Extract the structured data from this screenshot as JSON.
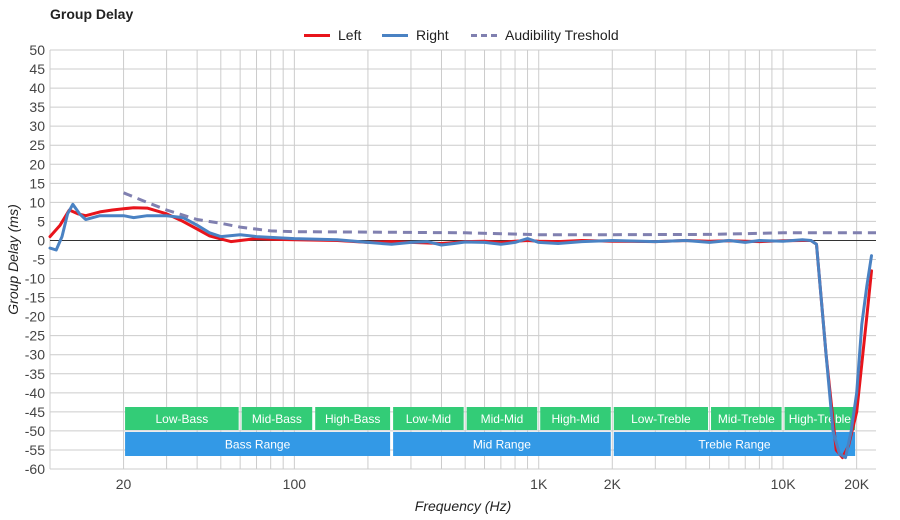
{
  "chart_data": {
    "type": "line",
    "title": "Group Delay",
    "xlabel": "Frequency (Hz)",
    "ylabel": "Group Delay (ms)",
    "xscale": "log",
    "xlim": [
      10,
      24000
    ],
    "ylim": [
      -60,
      50
    ],
    "grid": true,
    "legend_position": "top-center",
    "x_tick_labels": [
      {
        "value": 20,
        "label": "20"
      },
      {
        "value": 100,
        "label": "100"
      },
      {
        "value": 1000,
        "label": "1K"
      },
      {
        "value": 2000,
        "label": "2K"
      },
      {
        "value": 10000,
        "label": "10K"
      },
      {
        "value": 20000,
        "label": "20K"
      }
    ],
    "y_ticks": [
      50,
      45,
      40,
      35,
      30,
      25,
      20,
      15,
      10,
      5,
      0,
      -5,
      -10,
      -15,
      -20,
      -25,
      -30,
      -35,
      -40,
      -45,
      -50,
      -55,
      -60
    ],
    "series": [
      {
        "name": "Left",
        "color": "#e8141b",
        "dash": "solid",
        "points": [
          [
            10,
            1
          ],
          [
            11,
            4
          ],
          [
            12,
            8
          ],
          [
            13,
            7
          ],
          [
            14,
            6.5
          ],
          [
            16,
            7.5
          ],
          [
            18,
            8
          ],
          [
            20,
            8.3
          ],
          [
            22,
            8.6
          ],
          [
            25,
            8.5
          ],
          [
            30,
            7
          ],
          [
            35,
            5
          ],
          [
            40,
            3
          ],
          [
            45,
            1.2
          ],
          [
            50,
            0.4
          ],
          [
            55,
            -0.3
          ],
          [
            60,
            0
          ],
          [
            70,
            0.5
          ],
          [
            80,
            0.3
          ],
          [
            100,
            0.2
          ],
          [
            150,
            0
          ],
          [
            200,
            -0.5
          ],
          [
            250,
            -0.3
          ],
          [
            300,
            -0.5
          ],
          [
            400,
            -0.8
          ],
          [
            500,
            -0.3
          ],
          [
            600,
            -0.2
          ],
          [
            700,
            -0.5
          ],
          [
            800,
            -0.2
          ],
          [
            900,
            0
          ],
          [
            1000,
            -0.2
          ],
          [
            1200,
            -0.3
          ],
          [
            1500,
            0
          ],
          [
            2000,
            -0.2
          ],
          [
            3000,
            -0.3
          ],
          [
            4000,
            0
          ],
          [
            5000,
            -0.2
          ],
          [
            6000,
            -0.1
          ],
          [
            8000,
            -0.3
          ],
          [
            10000,
            -0.1
          ],
          [
            12000,
            0
          ],
          [
            13000,
            0
          ],
          [
            13700,
            -1
          ],
          [
            15000,
            -30
          ],
          [
            16500,
            -55
          ],
          [
            17500,
            -57
          ],
          [
            18500,
            -54
          ],
          [
            20000,
            -45
          ],
          [
            22000,
            -20
          ],
          [
            23000,
            -8
          ]
        ]
      },
      {
        "name": "Right",
        "color": "#4a82c3",
        "dash": "solid",
        "points": [
          [
            10,
            -2
          ],
          [
            10.6,
            -2.5
          ],
          [
            11.2,
            1
          ],
          [
            11.8,
            7
          ],
          [
            12.4,
            9.5
          ],
          [
            13.2,
            7
          ],
          [
            14,
            5.5
          ],
          [
            15,
            6
          ],
          [
            16,
            6.5
          ],
          [
            18,
            6.5
          ],
          [
            20,
            6.5
          ],
          [
            22,
            6
          ],
          [
            25,
            6.5
          ],
          [
            30,
            6.5
          ],
          [
            35,
            6
          ],
          [
            40,
            4
          ],
          [
            45,
            2
          ],
          [
            50,
            1
          ],
          [
            60,
            1.5
          ],
          [
            70,
            1
          ],
          [
            100,
            0.5
          ],
          [
            150,
            0.2
          ],
          [
            200,
            -0.5
          ],
          [
            250,
            -1
          ],
          [
            300,
            -0.5
          ],
          [
            350,
            -0.3
          ],
          [
            400,
            -1.2
          ],
          [
            450,
            -0.8
          ],
          [
            500,
            -0.4
          ],
          [
            600,
            -0.5
          ],
          [
            700,
            -1
          ],
          [
            800,
            -0.5
          ],
          [
            900,
            0.5
          ],
          [
            1000,
            -0.5
          ],
          [
            1200,
            -0.8
          ],
          [
            1500,
            -0.3
          ],
          [
            2000,
            0
          ],
          [
            3000,
            -0.3
          ],
          [
            4000,
            0
          ],
          [
            5000,
            -0.5
          ],
          [
            6000,
            0
          ],
          [
            7000,
            -0.5
          ],
          [
            8000,
            0
          ],
          [
            10000,
            -0.2
          ],
          [
            12000,
            0.2
          ],
          [
            13000,
            0
          ],
          [
            13700,
            -1
          ],
          [
            15000,
            -30
          ],
          [
            16000,
            -50
          ],
          [
            17000,
            -56
          ],
          [
            18000,
            -57
          ],
          [
            19000,
            -50
          ],
          [
            20000,
            -40
          ],
          [
            21000,
            -22
          ],
          [
            22000,
            -12
          ],
          [
            23000,
            -4
          ]
        ]
      },
      {
        "name": "Audibility Treshold",
        "color": "#8080b0",
        "dash": "dashed",
        "points": [
          [
            20,
            12.5
          ],
          [
            25,
            10
          ],
          [
            30,
            8
          ],
          [
            40,
            5.5
          ],
          [
            50,
            4.5
          ],
          [
            60,
            3.5
          ],
          [
            80,
            2.5
          ],
          [
            100,
            2.3
          ],
          [
            200,
            2.2
          ],
          [
            500,
            2
          ],
          [
            1000,
            1.5
          ],
          [
            2000,
            1.5
          ],
          [
            5000,
            1.6
          ],
          [
            10000,
            2
          ],
          [
            20000,
            2
          ],
          [
            24000,
            2
          ]
        ]
      }
    ],
    "range_bands": [
      {
        "label": "Low-Bass",
        "from": 20,
        "to": 60,
        "row": 1,
        "color": "#33cc77"
      },
      {
        "label": "Mid-Bass",
        "from": 60,
        "to": 120,
        "row": 1,
        "color": "#33cc77"
      },
      {
        "label": "High-Bass",
        "from": 120,
        "to": 250,
        "row": 1,
        "color": "#33cc77"
      },
      {
        "label": "Low-Mid",
        "from": 250,
        "to": 500,
        "row": 1,
        "color": "#33cc77"
      },
      {
        "label": "Mid-Mid",
        "from": 500,
        "to": 1000,
        "row": 1,
        "color": "#33cc77"
      },
      {
        "label": "High-Mid",
        "from": 1000,
        "to": 2000,
        "row": 1,
        "color": "#33cc77"
      },
      {
        "label": "Low-Treble",
        "from": 2000,
        "to": 5000,
        "row": 1,
        "color": "#33cc77"
      },
      {
        "label": "Mid-Treble",
        "from": 5000,
        "to": 10000,
        "row": 1,
        "color": "#33cc77"
      },
      {
        "label": "High-Treble",
        "from": 10000,
        "to": 20000,
        "row": 1,
        "color": "#33cc77"
      },
      {
        "label": "Bass Range",
        "from": 20,
        "to": 250,
        "row": 2,
        "color": "#3399e6"
      },
      {
        "label": "Mid Range",
        "from": 250,
        "to": 2000,
        "row": 2,
        "color": "#3399e6"
      },
      {
        "label": "Treble Range",
        "from": 2000,
        "to": 20000,
        "row": 2,
        "color": "#3399e6"
      }
    ]
  }
}
